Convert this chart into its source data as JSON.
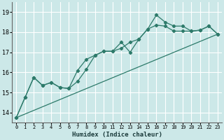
{
  "xlabel": "Humidex (Indice chaleur)",
  "xlim": [
    -0.5,
    23.5
  ],
  "ylim": [
    13.5,
    19.5
  ],
  "xticks": [
    0,
    1,
    2,
    3,
    4,
    5,
    6,
    7,
    8,
    9,
    10,
    11,
    12,
    13,
    14,
    15,
    16,
    17,
    18,
    19,
    20,
    21,
    22,
    23
  ],
  "yticks": [
    14,
    15,
    16,
    17,
    18,
    19
  ],
  "bg_color": "#cce8e8",
  "line_color": "#2d7a6a",
  "grid_color": "#ffffff",
  "line1": {
    "x": [
      0,
      1,
      2,
      3,
      4,
      5,
      6,
      7,
      8,
      9,
      10,
      11,
      12,
      13,
      14,
      15,
      16,
      17,
      18,
      19,
      20,
      21,
      22,
      23
    ],
    "y": [
      13.75,
      14.75,
      15.75,
      15.35,
      15.5,
      15.25,
      15.2,
      16.1,
      16.65,
      16.85,
      17.05,
      17.05,
      17.2,
      17.5,
      17.65,
      18.15,
      18.35,
      18.3,
      18.05,
      18.05,
      18.05,
      18.1,
      18.3,
      17.9
    ]
  },
  "line2": {
    "x": [
      0,
      1,
      2,
      3,
      4,
      5,
      6,
      7,
      8,
      9,
      10,
      11,
      12,
      13,
      14,
      15,
      16,
      17,
      18,
      19,
      20,
      21,
      22,
      23
    ],
    "y": [
      13.75,
      14.75,
      15.75,
      15.35,
      15.5,
      15.25,
      15.2,
      15.55,
      16.15,
      16.85,
      17.05,
      17.05,
      17.5,
      17.0,
      17.65,
      18.15,
      18.85,
      18.5,
      18.3,
      18.3,
      18.05,
      18.1,
      18.3,
      17.9
    ]
  },
  "line3": {
    "x": [
      0,
      23
    ],
    "y": [
      13.75,
      17.9
    ]
  }
}
